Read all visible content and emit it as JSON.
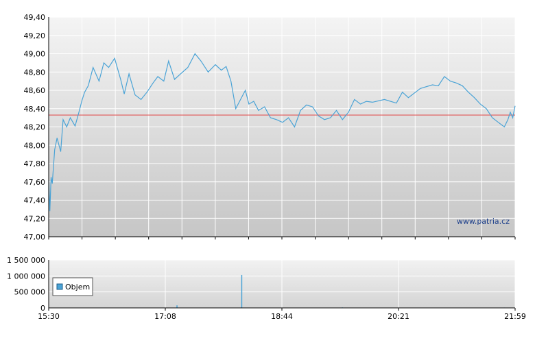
{
  "watermark": "www.patria.cz",
  "chart_data": [
    {
      "type": "line",
      "title": "",
      "xlabel": "",
      "ylabel": "",
      "ylim": [
        47.0,
        49.4
      ],
      "xlim": [
        "15:30",
        "21:59"
      ],
      "grid": true,
      "reference_line": {
        "value": 48.33,
        "color": "#e04040"
      },
      "line_color": "#4aa3d6",
      "y_ticks": [
        "47,00",
        "47,20",
        "47,40",
        "47,60",
        "47,80",
        "48,00",
        "48,20",
        "48,40",
        "48,60",
        "48,80",
        "49,00",
        "49,20",
        "49,40"
      ],
      "series": [
        {
          "x": [
            "15:30",
            "15:31",
            "15:32",
            "15:33",
            "15:35",
            "15:37",
            "15:40",
            "15:42",
            "15:45",
            "15:48",
            "15:52",
            "15:55",
            "15:58",
            "16:00",
            "16:03",
            "16:07",
            "16:12",
            "16:16",
            "16:20",
            "16:25",
            "16:30",
            "16:33",
            "16:37",
            "16:42",
            "16:47",
            "16:52",
            "16:57",
            "17:01",
            "17:06",
            "17:10",
            "17:15",
            "17:20",
            "17:26",
            "17:32",
            "17:37",
            "17:43",
            "17:49",
            "17:54",
            "17:58",
            "18:02",
            "18:06",
            "18:10",
            "18:14",
            "18:17",
            "18:21",
            "18:25",
            "18:30",
            "18:35",
            "18:40",
            "18:45",
            "18:50",
            "18:55",
            "19:00",
            "19:05",
            "19:10",
            "19:15",
            "19:20",
            "19:25",
            "19:30",
            "19:35",
            "19:40",
            "19:45",
            "19:50",
            "19:55",
            "20:00",
            "20:10",
            "20:20",
            "20:25",
            "20:30",
            "20:40",
            "20:50",
            "20:55",
            "21:00",
            "21:05",
            "21:10",
            "21:15",
            "21:20",
            "21:25",
            "21:30",
            "21:35",
            "21:40",
            "21:45",
            "21:50",
            "21:53",
            "21:55",
            "21:57",
            "21:59"
          ],
          "y": [
            47.62,
            47.28,
            47.65,
            47.58,
            47.95,
            48.08,
            47.93,
            48.28,
            48.2,
            48.3,
            48.21,
            48.35,
            48.5,
            48.58,
            48.65,
            48.85,
            48.7,
            48.9,
            48.85,
            48.95,
            48.72,
            48.56,
            48.78,
            48.55,
            48.5,
            48.58,
            48.68,
            48.75,
            48.7,
            48.92,
            48.72,
            48.78,
            48.85,
            49.0,
            48.92,
            48.8,
            48.88,
            48.82,
            48.86,
            48.7,
            48.4,
            48.5,
            48.6,
            48.45,
            48.48,
            48.38,
            48.42,
            48.3,
            48.28,
            48.25,
            48.3,
            48.2,
            48.38,
            48.44,
            48.42,
            48.32,
            48.28,
            48.3,
            48.38,
            48.28,
            48.36,
            48.5,
            48.45,
            48.48,
            48.47,
            48.5,
            48.46,
            48.58,
            48.52,
            48.62,
            48.66,
            48.65,
            48.75,
            48.7,
            48.68,
            48.65,
            48.58,
            48.52,
            48.45,
            48.4,
            48.3,
            48.25,
            48.2,
            48.28,
            48.36,
            48.3,
            48.43
          ]
        }
      ]
    },
    {
      "type": "bar",
      "title": "",
      "xlabel": "",
      "ylabel": "",
      "ylim": [
        0,
        1500000
      ],
      "xlim": [
        "15:30",
        "21:59"
      ],
      "grid": true,
      "legend": {
        "position": "left",
        "entries": [
          "Objem"
        ]
      },
      "bar_color": "#4aa3d6",
      "y_ticks": [
        "1 500 000",
        "1 000 000",
        "500 000",
        "0"
      ],
      "x_ticks": [
        "15:30",
        "17:08",
        "18:44",
        "20:21",
        "21:59"
      ],
      "series": [
        {
          "name": "Objem",
          "x": [
            "16:10",
            "16:40",
            "17:17",
            "17:45",
            "18:11",
            "18:30",
            "18:49",
            "19:05",
            "19:20",
            "19:35",
            "19:50",
            "20:07",
            "20:25",
            "20:45",
            "20:58",
            "21:10",
            "21:25",
            "21:38",
            "21:50"
          ],
          "values": [
            8000,
            6000,
            80000,
            10000,
            1030000,
            9000,
            6000,
            7000,
            5000,
            15000,
            9000,
            8000,
            7000,
            6000,
            10000,
            8000,
            6000,
            7000,
            12000
          ]
        }
      ]
    }
  ]
}
